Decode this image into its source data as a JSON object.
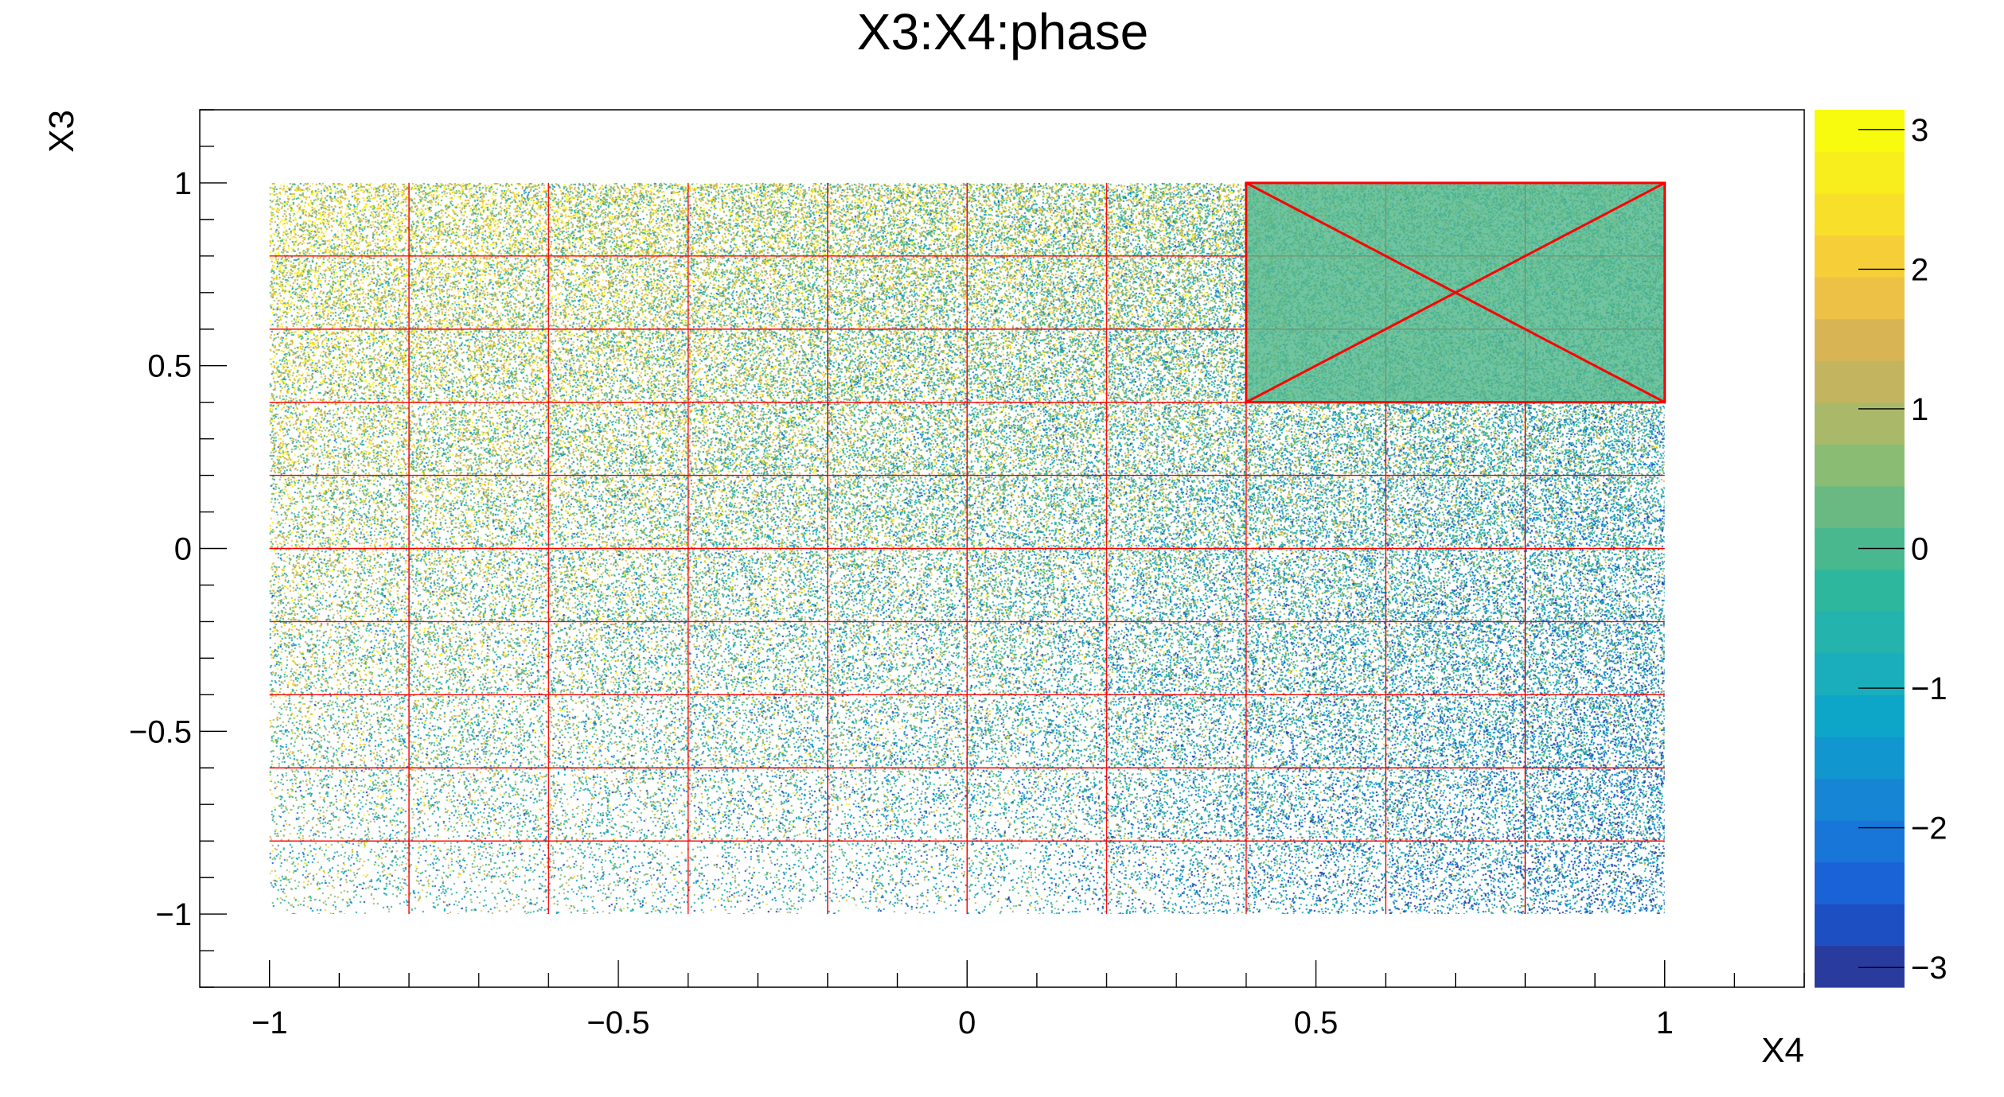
{
  "chart_data": {
    "type": "scatter",
    "title": "X3:X4:phase",
    "xlabel": "X4",
    "ylabel": "X3",
    "xlim": [
      -1.1,
      1.2
    ],
    "ylim": [
      -1.2,
      1.2
    ],
    "x_ticks": [
      -1,
      -0.5,
      0,
      0.5,
      1
    ],
    "x_tick_labels": [
      "−1",
      "−0.5",
      "0",
      "0.5",
      "1"
    ],
    "y_ticks": [
      -1,
      -0.5,
      0,
      0.5,
      1
    ],
    "y_tick_labels": [
      "−1",
      "−0.5",
      "0",
      "0.5",
      "1"
    ],
    "z_ticks": [
      -3,
      -2,
      -1,
      0,
      1,
      2,
      3
    ],
    "z_tick_labels": [
      "−3",
      "−2",
      "−1",
      "0",
      "1",
      "2",
      "3"
    ],
    "zlim": [
      -3.14159,
      3.14159
    ],
    "color_palette": [
      "#2a3b9e",
      "#1e4fc2",
      "#1a63d6",
      "#1876d9",
      "#1686d4",
      "#1296cf",
      "#0ea6c8",
      "#1aaebd",
      "#24b3ad",
      "#2db79d",
      "#4ab88f",
      "#6ab982",
      "#8bbc74",
      "#aab969",
      "#c3b55f",
      "#d8b455",
      "#ecc145",
      "#f6cf38",
      "#f8df2a",
      "#f9ee1d",
      "#f9fb0e"
    ],
    "data_region": {
      "x": [
        -1,
        1
      ],
      "y": [
        -1,
        1
      ]
    },
    "grid": true,
    "grid_color": "#ff0000",
    "grid_x": [
      -0.8,
      -0.6,
      -0.4,
      -0.2,
      0,
      0.2,
      0.4,
      0.6,
      0.8
    ],
    "grid_y": [
      -0.8,
      -0.6,
      -0.4,
      -0.2,
      0,
      0.2,
      0.4,
      0.6,
      0.8
    ],
    "highlight_box": {
      "x": [
        0.4,
        1
      ],
      "y": [
        0.4,
        1
      ],
      "color": "#ff0000",
      "fill": "#52b78c"
    }
  }
}
